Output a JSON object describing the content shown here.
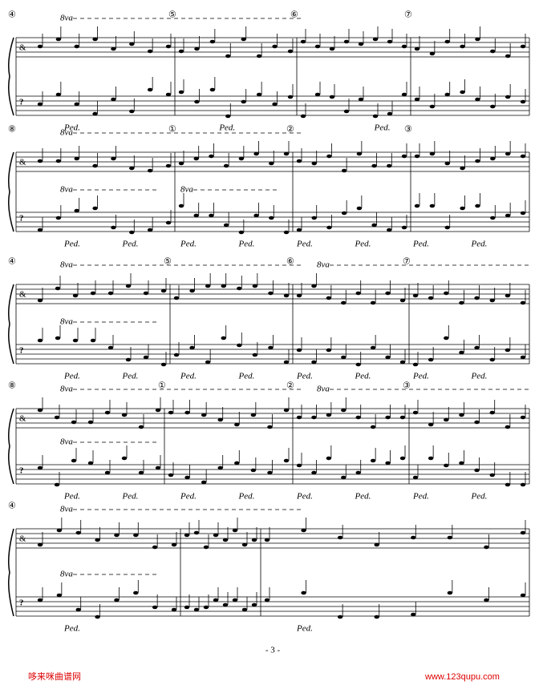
{
  "systems": [
    {
      "measures": [
        "④",
        "⑤",
        "⑥",
        "⑦"
      ],
      "ottava_treble": [
        "8va"
      ],
      "ottava_bass": [],
      "pedals": [
        "Ped.",
        "Ped.",
        "Ped."
      ]
    },
    {
      "measures": [
        "⑧",
        "①",
        "②",
        "③"
      ],
      "ottava_treble": [
        "8va"
      ],
      "ottava_bass": [
        "8va",
        "8va"
      ],
      "pedals": [
        "Ped.",
        "Ped.",
        "Ped.",
        "Ped.",
        "Ped.",
        "Ped.",
        "Ped.",
        "Ped."
      ]
    },
    {
      "measures": [
        "④",
        "⑤",
        "⑥",
        "⑦"
      ],
      "ottava_treble": [
        "8va",
        "8va"
      ],
      "ottava_bass": [
        "8va"
      ],
      "pedals": [
        "Ped.",
        "Ped.",
        "Ped.",
        "Ped.",
        "Ped.",
        "Ped.",
        "Ped.",
        "Ped."
      ]
    },
    {
      "measures": [
        "⑧",
        "①",
        "②",
        "③"
      ],
      "ottava_treble": [
        "8va",
        "8va"
      ],
      "ottava_bass": [
        "8va"
      ],
      "pedals": [
        "Ped.",
        "Ped.",
        "Ped.",
        "Ped.",
        "Ped.",
        "Ped.",
        "Ped.",
        "Ped."
      ]
    },
    {
      "measures": [
        "④"
      ],
      "ottava_treble": [
        "8va"
      ],
      "ottava_bass": [
        "8va"
      ],
      "pedals": [
        "Ped.",
        "Ped."
      ]
    }
  ],
  "footer": {
    "page": "- 3 -",
    "site_name": "哆来咪曲谱网",
    "site_url": "www.123qupu.com"
  }
}
